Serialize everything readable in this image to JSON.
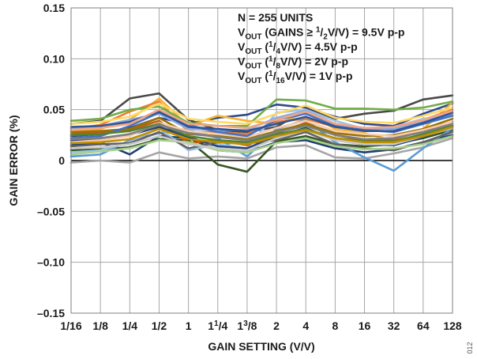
{
  "chart_data": {
    "type": "line",
    "xlabel": "GAIN SETTING (V/V)",
    "ylabel": "GAIN ERROR (%)",
    "ylim": [
      -0.15,
      0.15
    ],
    "y_ticks": [
      "0.15",
      "0.10",
      "0.05",
      "0",
      "–0.05",
      "–0.10",
      "–0.15"
    ],
    "y_tick_values": [
      0.15,
      0.1,
      0.05,
      0,
      -0.05,
      -0.1,
      -0.15
    ],
    "categories": [
      {
        "main": "1/16",
        "num": "",
        "den": ""
      },
      {
        "main": "1/8",
        "num": "",
        "den": ""
      },
      {
        "main": "1/4",
        "num": "",
        "den": ""
      },
      {
        "main": "1/2",
        "num": "",
        "den": ""
      },
      {
        "main": "1",
        "num": "",
        "den": ""
      },
      {
        "main": "1",
        "num": "1",
        "den": "/4"
      },
      {
        "main": "1",
        "num": "3",
        "den": "/8"
      },
      {
        "main": "2",
        "num": "",
        "den": ""
      },
      {
        "main": "4",
        "num": "",
        "den": ""
      },
      {
        "main": "8",
        "num": "",
        "den": ""
      },
      {
        "main": "16",
        "num": "",
        "den": ""
      },
      {
        "main": "32",
        "num": "",
        "den": ""
      },
      {
        "main": "64",
        "num": "",
        "den": ""
      },
      {
        "main": "128",
        "num": "",
        "den": ""
      }
    ],
    "grid": true,
    "legend": "none",
    "annotations": [
      [
        {
          "t": "N = 255 UNITS",
          "k": "n"
        }
      ],
      [
        {
          "t": "V",
          "k": "n"
        },
        {
          "t": "OUT",
          "k": "sub"
        },
        {
          "t": " (GAINS ≥ ",
          "k": "n"
        },
        {
          "t": "1",
          "k": "sup"
        },
        {
          "t": "/",
          "k": "n"
        },
        {
          "t": "2",
          "k": "sub"
        },
        {
          "t": "V/V) = 9.5V p-p",
          "k": "n"
        }
      ],
      [
        {
          "t": "V",
          "k": "n"
        },
        {
          "t": "OUT",
          "k": "sub"
        },
        {
          "t": " (",
          "k": "n"
        },
        {
          "t": "1",
          "k": "sup"
        },
        {
          "t": "/",
          "k": "n"
        },
        {
          "t": "4",
          "k": "sub"
        },
        {
          "t": "V/V) = 4.5V p-p",
          "k": "n"
        }
      ],
      [
        {
          "t": "V",
          "k": "n"
        },
        {
          "t": "OUT",
          "k": "sub"
        },
        {
          "t": " (",
          "k": "n"
        },
        {
          "t": "1",
          "k": "sup"
        },
        {
          "t": "/",
          "k": "n"
        },
        {
          "t": "8",
          "k": "sub"
        },
        {
          "t": "V/V) = 2V p-p",
          "k": "n"
        }
      ],
      [
        {
          "t": "V",
          "k": "n"
        },
        {
          "t": "OUT",
          "k": "sub"
        },
        {
          "t": " (",
          "k": "n"
        },
        {
          "t": "1",
          "k": "sup"
        },
        {
          "t": "/",
          "k": "n"
        },
        {
          "t": "16",
          "k": "sub"
        },
        {
          "t": "V/V) = 1V p-p",
          "k": "n"
        }
      ]
    ],
    "series": [
      {
        "color": "#2e4a8a",
        "values": [
          0.024,
          0.026,
          0.032,
          0.042,
          0.036,
          0.042,
          0.045,
          0.055,
          0.052,
          0.043,
          0.036,
          0.034,
          0.046,
          0.056
        ]
      },
      {
        "color": "#4a4a4a",
        "values": [
          0.036,
          0.039,
          0.061,
          0.066,
          0.04,
          0.03,
          0.028,
          0.033,
          0.05,
          0.041,
          0.046,
          0.049,
          0.06,
          0.064
        ]
      },
      {
        "color": "#a5a5a5",
        "values": [
          -0.002,
          0.0,
          -0.002,
          0.008,
          0.002,
          0.004,
          0.002,
          0.013,
          0.015,
          0.003,
          0.002,
          0.007,
          0.013,
          0.022
        ]
      },
      {
        "color": "#1f3f6e",
        "values": [
          0.015,
          0.018,
          0.006,
          0.024,
          0.022,
          0.01,
          0.008,
          0.018,
          0.02,
          0.012,
          0.008,
          0.011,
          0.018,
          0.025
        ]
      },
      {
        "color": "#375623",
        "values": [
          0.01,
          0.011,
          0.013,
          0.021,
          0.02,
          -0.004,
          -0.011,
          0.019,
          0.024,
          0.016,
          0.014,
          0.016,
          0.022,
          0.03
        ]
      },
      {
        "color": "#f4b233",
        "values": [
          0.029,
          0.031,
          0.04,
          0.061,
          0.034,
          0.044,
          0.039,
          0.036,
          0.047,
          0.031,
          0.027,
          0.019,
          0.031,
          0.057
        ]
      },
      {
        "color": "#ed7d31",
        "values": [
          0.031,
          0.035,
          0.048,
          0.058,
          0.028,
          0.028,
          0.026,
          0.038,
          0.041,
          0.033,
          0.03,
          0.032,
          0.04,
          0.05
        ]
      },
      {
        "color": "#5b9bd5",
        "values": [
          0.004,
          0.006,
          0.02,
          0.027,
          0.03,
          0.022,
          0.004,
          0.031,
          0.04,
          0.018,
          0.003,
          -0.01,
          0.012,
          0.032
        ]
      },
      {
        "color": "#70ad47",
        "values": [
          0.039,
          0.041,
          0.05,
          0.053,
          0.037,
          0.034,
          0.034,
          0.06,
          0.059,
          0.051,
          0.051,
          0.05,
          0.052,
          0.058
        ]
      },
      {
        "color": "#9dc3e6",
        "values": [
          0.008,
          0.01,
          0.018,
          0.032,
          0.01,
          0.016,
          0.012,
          0.047,
          0.05,
          0.039,
          0.031,
          0.033,
          0.041,
          0.044
        ]
      },
      {
        "color": "#c55a11",
        "values": [
          0.026,
          0.028,
          0.03,
          0.039,
          0.017,
          0.02,
          0.015,
          0.027,
          0.037,
          0.025,
          0.02,
          0.021,
          0.03,
          0.038
        ]
      },
      {
        "color": "#264478",
        "values": [
          0.02,
          0.021,
          0.025,
          0.033,
          0.023,
          0.014,
          0.012,
          0.024,
          0.032,
          0.02,
          0.016,
          0.015,
          0.023,
          0.034
        ]
      },
      {
        "color": "#636363",
        "values": [
          0.014,
          0.016,
          0.017,
          0.028,
          0.012,
          0.018,
          0.017,
          0.02,
          0.028,
          0.016,
          0.012,
          0.01,
          0.018,
          0.028
        ]
      },
      {
        "color": "#997300",
        "values": [
          0.028,
          0.029,
          0.031,
          0.042,
          0.026,
          0.024,
          0.021,
          0.029,
          0.036,
          0.027,
          0.024,
          0.025,
          0.031,
          0.041
        ]
      },
      {
        "color": "#8faadc",
        "values": [
          0.032,
          0.034,
          0.04,
          0.046,
          0.031,
          0.03,
          0.03,
          0.042,
          0.049,
          0.036,
          0.032,
          0.031,
          0.038,
          0.046
        ]
      },
      {
        "color": "#f8cbad",
        "values": [
          0.018,
          0.02,
          0.024,
          0.037,
          0.029,
          0.026,
          0.023,
          0.032,
          0.039,
          0.029,
          0.026,
          0.024,
          0.03,
          0.038
        ]
      },
      {
        "color": "#a9d18e",
        "values": [
          0.006,
          0.009,
          0.012,
          0.02,
          0.018,
          0.01,
          0.008,
          0.017,
          0.022,
          0.014,
          0.011,
          0.012,
          0.016,
          0.024
        ]
      },
      {
        "color": "#ffd966",
        "values": [
          0.036,
          0.038,
          0.043,
          0.056,
          0.041,
          0.038,
          0.036,
          0.046,
          0.054,
          0.042,
          0.038,
          0.037,
          0.044,
          0.052
        ]
      },
      {
        "color": "#4472c4",
        "values": [
          0.022,
          0.024,
          0.034,
          0.047,
          0.035,
          0.028,
          0.024,
          0.04,
          0.046,
          0.034,
          0.03,
          0.028,
          0.036,
          0.044
        ]
      },
      {
        "color": "#c9c9c9",
        "values": [
          0.012,
          0.013,
          0.016,
          0.024,
          0.016,
          0.012,
          0.01,
          0.022,
          0.03,
          0.02,
          0.016,
          0.016,
          0.024,
          0.032
        ]
      },
      {
        "color": "#548235",
        "values": [
          0.025,
          0.026,
          0.029,
          0.036,
          0.024,
          0.02,
          0.018,
          0.026,
          0.031,
          0.022,
          0.019,
          0.019,
          0.026,
          0.035
        ]
      },
      {
        "color": "#bf8f00",
        "values": [
          0.017,
          0.018,
          0.021,
          0.031,
          0.021,
          0.018,
          0.016,
          0.024,
          0.03,
          0.022,
          0.018,
          0.018,
          0.024,
          0.033
        ]
      },
      {
        "color": "#2f5597",
        "values": [
          0.033,
          0.034,
          0.038,
          0.048,
          0.033,
          0.031,
          0.029,
          0.036,
          0.043,
          0.033,
          0.029,
          0.029,
          0.037,
          0.047
        ]
      },
      {
        "color": "#f4a582",
        "values": [
          0.03,
          0.032,
          0.036,
          0.05,
          0.036,
          0.034,
          0.032,
          0.04,
          0.048,
          0.036,
          0.032,
          0.033,
          0.04,
          0.049
        ]
      },
      {
        "color": "#7f7f7f",
        "values": [
          0.021,
          0.022,
          0.026,
          0.035,
          0.027,
          0.023,
          0.02,
          0.028,
          0.034,
          0.025,
          0.021,
          0.022,
          0.028,
          0.036
        ]
      }
    ]
  },
  "figure_id": "012"
}
